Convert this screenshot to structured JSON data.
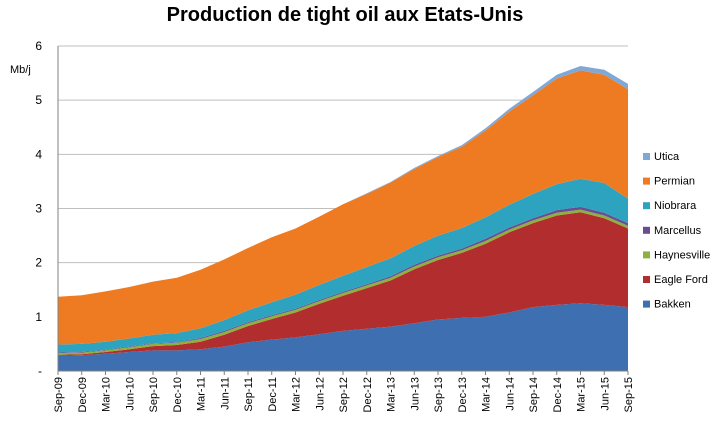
{
  "chart_data": {
    "type": "area",
    "title": "Production de tight oil aux Etats-Unis",
    "ylabel": "Mb/j",
    "ylim": [
      0,
      6
    ],
    "yticks": [
      "-",
      "1",
      "2",
      "3",
      "4",
      "5",
      "6"
    ],
    "grid": "horizontal",
    "legend": "right",
    "x": [
      "Sep-09",
      "Dec-09",
      "Mar-10",
      "Jun-10",
      "Sep-10",
      "Dec-10",
      "Mar-11",
      "Jun-11",
      "Sep-11",
      "Dec-11",
      "Mar-12",
      "Jun-12",
      "Sep-12",
      "Dec-12",
      "Mar-13",
      "Jun-13",
      "Sep-13",
      "Dec-13",
      "Mar-14",
      "Jun-14",
      "Sep-14",
      "Dec-14",
      "Mar-15",
      "Jun-15",
      "Sep-15"
    ],
    "series": [
      {
        "name": "Bakken",
        "color": "#3E6FB0",
        "values": [
          0.28,
          0.29,
          0.32,
          0.35,
          0.38,
          0.38,
          0.4,
          0.45,
          0.53,
          0.58,
          0.62,
          0.68,
          0.74,
          0.78,
          0.82,
          0.88,
          0.95,
          0.98,
          1.0,
          1.08,
          1.18,
          1.22,
          1.25,
          1.22,
          1.18
        ]
      },
      {
        "name": "Eagle Ford",
        "color": "#B22E2E",
        "values": [
          0.02,
          0.02,
          0.03,
          0.05,
          0.08,
          0.1,
          0.14,
          0.22,
          0.3,
          0.38,
          0.46,
          0.56,
          0.65,
          0.75,
          0.85,
          1.0,
          1.1,
          1.2,
          1.35,
          1.48,
          1.55,
          1.65,
          1.68,
          1.6,
          1.45
        ]
      },
      {
        "name": "Haynesville",
        "color": "#8DB03E",
        "values": [
          0.03,
          0.03,
          0.03,
          0.04,
          0.04,
          0.04,
          0.05,
          0.05,
          0.05,
          0.05,
          0.05,
          0.05,
          0.05,
          0.05,
          0.05,
          0.05,
          0.05,
          0.05,
          0.05,
          0.05,
          0.05,
          0.05,
          0.05,
          0.05,
          0.05
        ]
      },
      {
        "name": "Marcellus",
        "color": "#6A4C93",
        "values": [
          0.01,
          0.01,
          0.01,
          0.01,
          0.01,
          0.01,
          0.02,
          0.02,
          0.02,
          0.02,
          0.02,
          0.02,
          0.02,
          0.02,
          0.03,
          0.03,
          0.03,
          0.03,
          0.04,
          0.04,
          0.04,
          0.05,
          0.05,
          0.05,
          0.05
        ]
      },
      {
        "name": "Niobrara",
        "color": "#2EA3BF",
        "values": [
          0.15,
          0.15,
          0.15,
          0.15,
          0.16,
          0.17,
          0.18,
          0.2,
          0.22,
          0.24,
          0.26,
          0.28,
          0.3,
          0.32,
          0.33,
          0.35,
          0.37,
          0.38,
          0.4,
          0.42,
          0.45,
          0.48,
          0.52,
          0.55,
          0.45
        ]
      },
      {
        "name": "Permian",
        "color": "#EE7B22",
        "values": [
          0.88,
          0.9,
          0.93,
          0.95,
          0.98,
          1.02,
          1.08,
          1.12,
          1.15,
          1.2,
          1.22,
          1.26,
          1.32,
          1.35,
          1.4,
          1.42,
          1.45,
          1.5,
          1.6,
          1.72,
          1.82,
          1.95,
          2.0,
          2.0,
          2.02
        ]
      },
      {
        "name": "Utica",
        "color": "#7FA8D6",
        "values": [
          0.0,
          0.0,
          0.0,
          0.0,
          0.0,
          0.0,
          0.0,
          0.0,
          0.0,
          0.0,
          0.0,
          0.0,
          0.0,
          0.01,
          0.01,
          0.02,
          0.02,
          0.03,
          0.04,
          0.05,
          0.06,
          0.07,
          0.08,
          0.09,
          0.1
        ]
      }
    ]
  }
}
